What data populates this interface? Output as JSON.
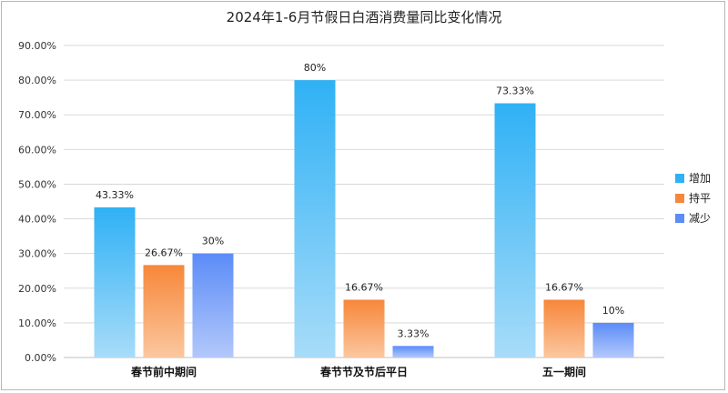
{
  "chart_data": {
    "type": "bar",
    "title": "2024年1-6月节假日白酒消费量同比变化情况",
    "categories": [
      "春节前中期间",
      "春节节及节后平日",
      "五一期间"
    ],
    "series": [
      {
        "name": "增加",
        "values": [
          43.33,
          80,
          73.33
        ],
        "labels": [
          "43.33%",
          "80%",
          "73.33%"
        ],
        "color_top": "#2fb1f5",
        "color_bottom": "#a8dcf9"
      },
      {
        "name": "持平",
        "values": [
          26.67,
          16.67,
          16.67
        ],
        "labels": [
          "26.67%",
          "16.67%",
          "16.67%"
        ],
        "color_top": "#f7873a",
        "color_bottom": "#fbc79f"
      },
      {
        "name": "减少",
        "values": [
          30,
          3.33,
          10
        ],
        "labels": [
          "30%",
          "3.33%",
          "10%"
        ],
        "color_top": "#5b8cf7",
        "color_bottom": "#b3c8fb"
      }
    ],
    "y_ticks": [
      "0.00%",
      "10.00%",
      "20.00%",
      "30.00%",
      "40.00%",
      "50.00%",
      "60.00%",
      "70.00%",
      "80.00%",
      "90.00%"
    ],
    "ylim": [
      0,
      90
    ],
    "legend_position": "right",
    "grid": true
  }
}
